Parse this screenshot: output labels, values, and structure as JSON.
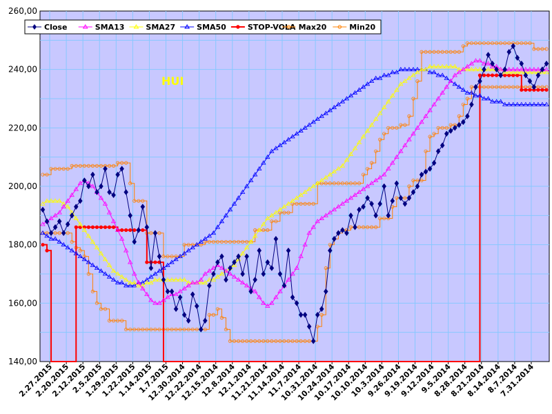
{
  "chart_data": {
    "type": "line",
    "title": "",
    "annotation": "HUI",
    "xlabel": "",
    "ylabel": "",
    "ylim": [
      140,
      260
    ],
    "y_ticks": [
      "140,00",
      "160,00",
      "180,00",
      "200,00",
      "220,00",
      "240,00",
      "260,00"
    ],
    "x_ticks": [
      "2.27.2015",
      "2.20.2015",
      "2.12.2015",
      "2.5.2015",
      "1.29.2015",
      "1.22.2015",
      "1.14.2015",
      "1.7.2015",
      "12.30.2014",
      "12.22.2014",
      "12.15.2014",
      "12.8.2014",
      "12.1.2014",
      "11.21.2014",
      "11.14.2014",
      "11.7.2014",
      "10.31.2014",
      "10.24.2014",
      "10.17.2014",
      "10.10.2014",
      "10.3.2014",
      "9.26.2014",
      "9.19.2014",
      "9.12.2014",
      "9.5.2014",
      "8.28.2014",
      "8.21.2014",
      "8.14.2014",
      "8.7.2014",
      "7.31.2014"
    ],
    "x_order": "newest on the left",
    "grid": true,
    "legend_position": "top",
    "colors": {
      "plot_bg": "#c8c8ff",
      "grid": "#88c8ff"
    },
    "series": [
      {
        "name": "Close",
        "color": "#000080",
        "marker": "diamond",
        "values": [
          192,
          188,
          184,
          186,
          188,
          184,
          187,
          190,
          193,
          195,
          202,
          200,
          204,
          198,
          200,
          206,
          198,
          197,
          204,
          206,
          198,
          190,
          181,
          185,
          193,
          186,
          172,
          184,
          176,
          168,
          164,
          164,
          158,
          162,
          156,
          154,
          163,
          159,
          151,
          154,
          166,
          170,
          174,
          176,
          168,
          172,
          174,
          176,
          170,
          176,
          164,
          168,
          178,
          170,
          174,
          172,
          182,
          170,
          166,
          178,
          162,
          160,
          156,
          156,
          152,
          147,
          156,
          158,
          164,
          178,
          182,
          184,
          185,
          184,
          190,
          186,
          192,
          193,
          196,
          194,
          190,
          194,
          200,
          190,
          195,
          201,
          196,
          194,
          196,
          198,
          200,
          204,
          205,
          206,
          208,
          212,
          214,
          218,
          219,
          220,
          221,
          222,
          224,
          228,
          234,
          236,
          240,
          245,
          242,
          240,
          238,
          240,
          246,
          248,
          244,
          242,
          238,
          236,
          234,
          238,
          240,
          242
        ]
      },
      {
        "name": "SMA13",
        "color": "#ff00ff",
        "marker": "triangle",
        "values": [
          187,
          188,
          189,
          190,
          191,
          193,
          195,
          197,
          199,
          201,
          202,
          201,
          200,
          198,
          196,
          194,
          191,
          188,
          185,
          182,
          178,
          174,
          170,
          167,
          165,
          163,
          161,
          160,
          160,
          161,
          162,
          163,
          163,
          164,
          165,
          166,
          167,
          167,
          168,
          170,
          171,
          172,
          173,
          172,
          171,
          170,
          169,
          168,
          167,
          166,
          165,
          164,
          162,
          160,
          159,
          160,
          162,
          164,
          166,
          168,
          170,
          172,
          176,
          180,
          184,
          186,
          188,
          189,
          190,
          191,
          192,
          193,
          194,
          195,
          196,
          197,
          198,
          199,
          200,
          201,
          202,
          203,
          204,
          206,
          208,
          210,
          212,
          214,
          216,
          218,
          220,
          222,
          224,
          226,
          228,
          230,
          232,
          234,
          236,
          238,
          239,
          240,
          241,
          242,
          243,
          243,
          242,
          242,
          241,
          241,
          240,
          240,
          240,
          240,
          240,
          240,
          240,
          240,
          240,
          240,
          240,
          240
        ]
      },
      {
        "name": "SMA27",
        "color": "#ffff00",
        "marker": "triangle",
        "values": [
          194,
          195,
          195,
          195,
          195,
          194,
          193,
          191,
          189,
          187,
          185,
          183,
          181,
          179,
          177,
          175,
          173,
          171,
          170,
          169,
          168,
          167,
          167,
          166,
          166,
          167,
          167,
          168,
          168,
          168,
          168,
          168,
          168,
          168,
          168,
          167,
          167,
          167,
          167,
          167,
          168,
          168,
          169,
          170,
          171,
          172,
          173,
          175,
          177,
          179,
          181,
          183,
          185,
          187,
          189,
          190,
          191,
          192,
          193,
          194,
          195,
          196,
          197,
          198,
          199,
          200,
          201,
          202,
          203,
          204,
          205,
          206,
          207,
          209,
          211,
          213,
          215,
          217,
          219,
          221,
          223,
          225,
          227,
          229,
          231,
          233,
          235,
          236,
          237,
          238,
          239,
          240,
          240,
          241,
          241,
          241,
          241,
          241,
          241,
          241,
          240,
          240,
          240,
          240,
          240,
          240,
          240,
          240,
          240,
          240,
          240,
          239,
          239,
          239,
          239,
          239,
          239,
          239,
          239,
          239,
          239,
          239
        ]
      },
      {
        "name": "SMA50",
        "color": "#0000ff",
        "marker": "triangle",
        "values": [
          184,
          183,
          182,
          182,
          181,
          180,
          179,
          178,
          177,
          176,
          175,
          174,
          173,
          172,
          171,
          170,
          169,
          168,
          167,
          167,
          166,
          166,
          166,
          167,
          167,
          168,
          169,
          170,
          171,
          172,
          173,
          174,
          175,
          176,
          177,
          178,
          179,
          180,
          181,
          182,
          183,
          184,
          186,
          188,
          190,
          192,
          194,
          196,
          198,
          200,
          202,
          204,
          206,
          208,
          210,
          212,
          213,
          214,
          215,
          216,
          217,
          218,
          219,
          220,
          221,
          222,
          223,
          224,
          225,
          226,
          227,
          228,
          229,
          230,
          231,
          232,
          233,
          234,
          235,
          236,
          237,
          237,
          238,
          238,
          239,
          239,
          240,
          240,
          240,
          240,
          240,
          240,
          240,
          239,
          239,
          238,
          238,
          237,
          236,
          235,
          234,
          233,
          232,
          232,
          231,
          231,
          230,
          230,
          229,
          229,
          229,
          228,
          228,
          228,
          228,
          228,
          228,
          228,
          228,
          228,
          228,
          228
        ]
      },
      {
        "name": "STOP-VOLA",
        "color": "#ff0000",
        "marker": "circle",
        "values": [
          180,
          178,
          140,
          140,
          140,
          140,
          140,
          140,
          186,
          186,
          186,
          186,
          186,
          186,
          186,
          186,
          186,
          186,
          185,
          185,
          185,
          185,
          185,
          185,
          185,
          174,
          174,
          174,
          174,
          140,
          140,
          140,
          140,
          140,
          140,
          140,
          140,
          140,
          140,
          140,
          140,
          140,
          140,
          140,
          140,
          140,
          140,
          140,
          140,
          140,
          140,
          140,
          140,
          140,
          140,
          140,
          140,
          140,
          140,
          140,
          140,
          140,
          140,
          140,
          140,
          140,
          140,
          140,
          140,
          140,
          140,
          140,
          140,
          140,
          140,
          140,
          140,
          140,
          140,
          140,
          140,
          140,
          140,
          140,
          140,
          140,
          140,
          140,
          140,
          140,
          140,
          140,
          140,
          140,
          140,
          140,
          140,
          140,
          140,
          140,
          140,
          140,
          140,
          140,
          140,
          238,
          238,
          238,
          238,
          238,
          238,
          238,
          238,
          238,
          238,
          233,
          233,
          233,
          233,
          233,
          233,
          233
        ]
      },
      {
        "name": "Max20",
        "color": "#ff8000",
        "marker": "circle",
        "values": [
          204,
          204,
          206,
          206,
          206,
          206,
          206,
          207,
          207,
          207,
          207,
          207,
          207,
          207,
          207,
          207,
          207,
          207,
          208,
          208,
          208,
          201,
          195,
          195,
          195,
          184,
          184,
          184,
          184,
          176,
          176,
          176,
          176,
          176,
          180,
          180,
          180,
          180,
          180,
          181,
          181,
          181,
          181,
          181,
          181,
          181,
          181,
          181,
          181,
          181,
          181,
          185,
          185,
          185,
          185,
          188,
          188,
          191,
          191,
          191,
          194,
          194,
          194,
          194,
          194,
          194,
          201,
          201,
          201,
          201,
          201,
          201,
          201,
          201,
          201,
          201,
          201,
          204,
          206,
          208,
          212,
          216,
          218,
          220,
          220,
          220,
          221,
          221,
          224,
          230,
          236,
          246,
          246,
          246,
          246,
          246,
          246,
          246,
          246,
          246,
          246,
          248,
          249,
          249,
          249,
          249,
          249,
          249,
          249,
          249,
          249,
          249,
          249,
          249,
          249,
          249,
          249,
          249,
          247,
          247,
          247,
          247
        ]
      },
      {
        "name": "Min20",
        "color": "#ff8000",
        "marker": "circle",
        "values": [
          184,
          184,
          184,
          184,
          184,
          184,
          184,
          181,
          179,
          178,
          176,
          170,
          164,
          160,
          158,
          158,
          154,
          154,
          154,
          154,
          151,
          151,
          151,
          151,
          151,
          151,
          151,
          151,
          151,
          151,
          151,
          151,
          151,
          151,
          151,
          151,
          151,
          151,
          151,
          151,
          156,
          156,
          158,
          155,
          151,
          147,
          147,
          147,
          147,
          147,
          147,
          147,
          147,
          147,
          147,
          147,
          147,
          147,
          147,
          147,
          147,
          147,
          147,
          147,
          147,
          147,
          152,
          156,
          172,
          180,
          182,
          184,
          185,
          185,
          186,
          186,
          186,
          186,
          186,
          186,
          186,
          189,
          189,
          189,
          193,
          196,
          196,
          196,
          200,
          202,
          202,
          202,
          212,
          217,
          218,
          220,
          220,
          220,
          221,
          221,
          224,
          228,
          230,
          234,
          234,
          234,
          234,
          234,
          234,
          234,
          234,
          234,
          234,
          234,
          234,
          234,
          234,
          234,
          234,
          234,
          234,
          234
        ]
      }
    ]
  }
}
